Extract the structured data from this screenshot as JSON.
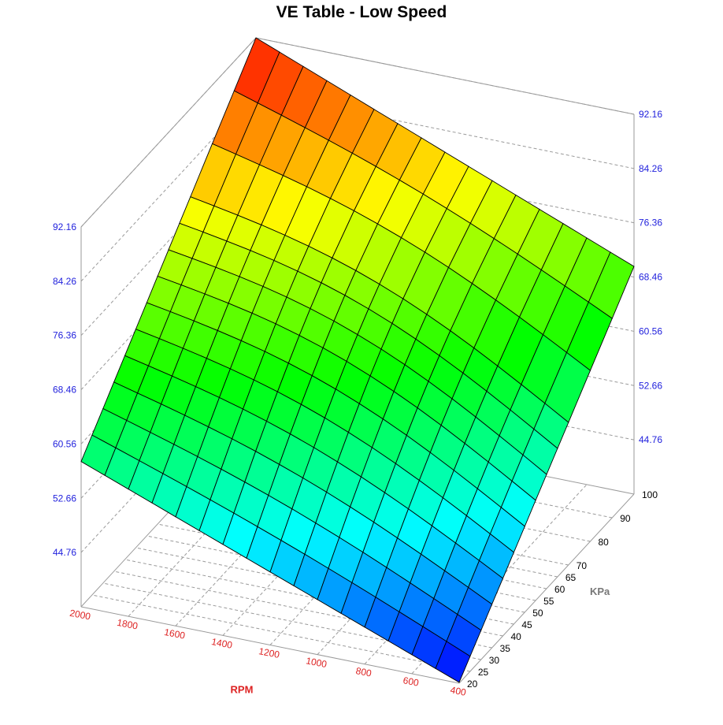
{
  "chart_data": {
    "type": "surface",
    "title": "VE Table - Low Speed",
    "x_label": "RPM",
    "y_label": "KPa",
    "z_label": "",
    "z_ticks": [
      "44.76",
      "52.66",
      "60.56",
      "68.46",
      "76.36",
      "84.26",
      "92.16"
    ],
    "z_range": [
      36.86,
      92.16
    ],
    "rpm_bins": [
      400,
      500,
      600,
      700,
      800,
      900,
      1000,
      1100,
      1200,
      1300,
      1400,
      1500,
      1600,
      1700,
      1800,
      1900,
      2000
    ],
    "rpm_tick_labels": [
      "400",
      "600",
      "800",
      "1000",
      "1200",
      "1400",
      "1600",
      "1800",
      "2000"
    ],
    "kpa_bins": [
      20,
      25,
      30,
      35,
      40,
      45,
      50,
      55,
      60,
      65,
      70,
      80,
      90,
      100
    ],
    "kpa_tick_labels": [
      "20",
      "25",
      "30",
      "35",
      "40",
      "45",
      "50",
      "55",
      "60",
      "65",
      "70",
      "80",
      "90",
      "100"
    ],
    "ve_corners": {
      "rpm400_kpa20": 37.0,
      "rpm2000_kpa20": 58.0,
      "rpm400_kpa100": 70.0,
      "rpm2000_kpa100": 92.16
    },
    "colorscale": [
      "#0000ff",
      "#00ffff",
      "#00ff00",
      "#ffff00",
      "#ff0000"
    ]
  }
}
